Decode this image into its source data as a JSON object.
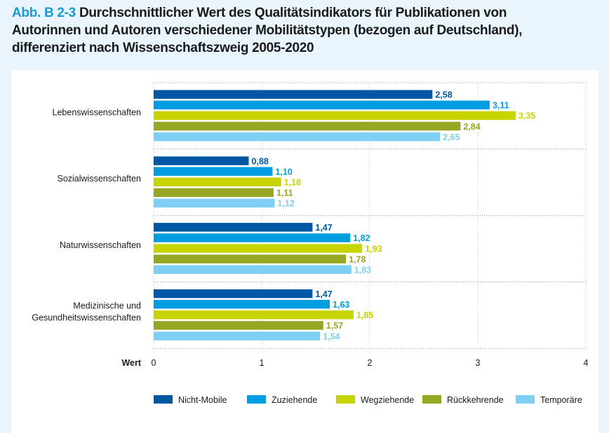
{
  "header": {
    "prefix": "Abb. B 2-3",
    "lines": [
      "Durchschnittlicher Wert des Qualitätsindikators für Publikationen von",
      "Autorinnen und Autoren verschiedener Mobilitätstypen (bezogen auf Deutschland),",
      "differenziert nach Wissenschaftszweig 2005-2020"
    ]
  },
  "chart_data": {
    "type": "bar",
    "orientation": "horizontal",
    "title": "Abb. B 2-3 Durchschnittlicher Wert des Qualitätsindikators für Publikationen von Autorinnen und Autoren verschiedener Mobilitätstypen (bezogen auf Deutschland), differenziert nach Wissenschaftszweig 2005-2020",
    "xlabel": "Wert",
    "ylabel": "",
    "xlim": [
      0,
      4
    ],
    "xticks": [
      0,
      1,
      2,
      3,
      4
    ],
    "grid": true,
    "legend_position": "bottom",
    "categories": [
      [
        "Lebenswissenschaften"
      ],
      [
        "Sozialwissenschaften"
      ],
      [
        "Naturwissenschaften"
      ],
      [
        "Medizinische und",
        "Gesundheitswissenschaften"
      ]
    ],
    "series": [
      {
        "name": "Nicht-Mobile",
        "color": "#0057a4",
        "values": [
          2.58,
          0.88,
          1.47,
          1.47
        ],
        "labels": [
          "2,58",
          "0,88",
          "1,47",
          "1,47"
        ]
      },
      {
        "name": "Zuziehende",
        "color": "#009de0",
        "values": [
          3.11,
          1.1,
          1.82,
          1.63
        ],
        "labels": [
          "3,11",
          "1,10",
          "1,82",
          "1,63"
        ]
      },
      {
        "name": "Wegziehende",
        "color": "#c8d400",
        "values": [
          3.35,
          1.18,
          1.93,
          1.85
        ],
        "labels": [
          "3,35",
          "1,18",
          "1,93",
          "1,85"
        ]
      },
      {
        "name": "Rückkehrende",
        "color": "#96a823",
        "values": [
          2.84,
          1.11,
          1.78,
          1.57
        ],
        "labels": [
          "2,84",
          "1,11",
          "1,78",
          "1,57"
        ]
      },
      {
        "name": "Temporäre",
        "color": "#7fcff4",
        "values": [
          2.65,
          1.12,
          1.83,
          1.54
        ],
        "labels": [
          "2,65",
          "1,12",
          "1,83",
          "1,54"
        ]
      }
    ]
  }
}
